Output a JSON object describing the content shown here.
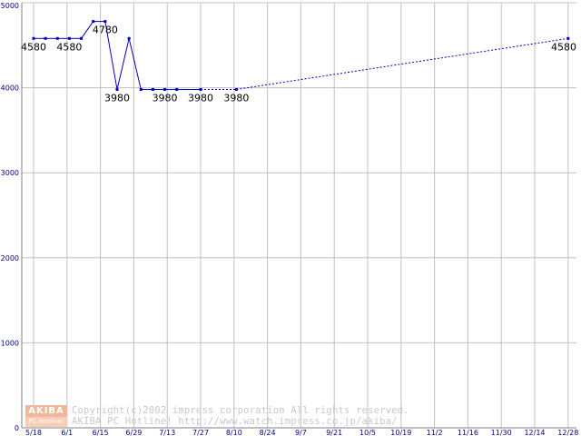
{
  "chart_data": {
    "type": "line",
    "title": "",
    "xlabel": "",
    "ylabel": "",
    "ylim": [
      0,
      5000
    ],
    "y_ticks": [
      0,
      1000,
      2000,
      3000,
      4000,
      5000
    ],
    "x_tick_labels": [
      "5/18",
      "6/1",
      "6/15",
      "6/29",
      "7/13",
      "7/27",
      "8/10",
      "8/24",
      "9/7",
      "9/21",
      "10/5",
      "10/19",
      "11/2",
      "11/16",
      "11/30",
      "12/14",
      "12/28"
    ],
    "grid": true,
    "line_color": "#0000c0",
    "series": [
      {
        "values": [
          {
            "date": "5/18",
            "y": 4580
          },
          {
            "date": "5/23",
            "y": 4580
          },
          {
            "date": "5/28",
            "y": 4580
          },
          {
            "date": "6/2",
            "y": 4580
          },
          {
            "date": "6/7",
            "y": 4580
          },
          {
            "date": "6/12",
            "y": 4780
          },
          {
            "date": "6/17",
            "y": 4780
          },
          {
            "date": "6/22",
            "y": 3980
          },
          {
            "date": "6/27",
            "y": 4580
          },
          {
            "date": "7/2",
            "y": 3980
          },
          {
            "date": "7/7",
            "y": 3980
          },
          {
            "date": "7/12",
            "y": 3980
          },
          {
            "date": "7/17",
            "y": 3980
          },
          {
            "date": "7/27",
            "y": 3980
          },
          {
            "date": "8/11",
            "y": 3980
          },
          {
            "date": "12/28",
            "y": 4580
          }
        ],
        "dotted_from_index": 13
      }
    ],
    "data_labels": [
      {
        "date": "5/18",
        "y": 4580,
        "text": "4580",
        "pos": "below"
      },
      {
        "date": "6/2",
        "y": 4580,
        "text": "4580",
        "pos": "below"
      },
      {
        "date": "6/17",
        "y": 4780,
        "text": "4780",
        "pos": "below"
      },
      {
        "date": "6/22",
        "y": 3980,
        "text": "3980",
        "pos": "below"
      },
      {
        "date": "7/12",
        "y": 3980,
        "text": "3980",
        "pos": "below"
      },
      {
        "date": "7/27",
        "y": 3980,
        "text": "3980",
        "pos": "below"
      },
      {
        "date": "8/11",
        "y": 3980,
        "text": "3980",
        "pos": "below"
      },
      {
        "date": "12/28",
        "y": 4580,
        "text": "4580",
        "pos": "below-left"
      }
    ]
  },
  "copyright": {
    "logo_top": "AKIBA",
    "logo_bottom": "PC Hotline!",
    "line1": "Copyright(c)2002 impress corporation All rights reserved.",
    "line2": "AKIBA PC Hotline!  http://www.watch.impress.co.jp/akiba/"
  }
}
